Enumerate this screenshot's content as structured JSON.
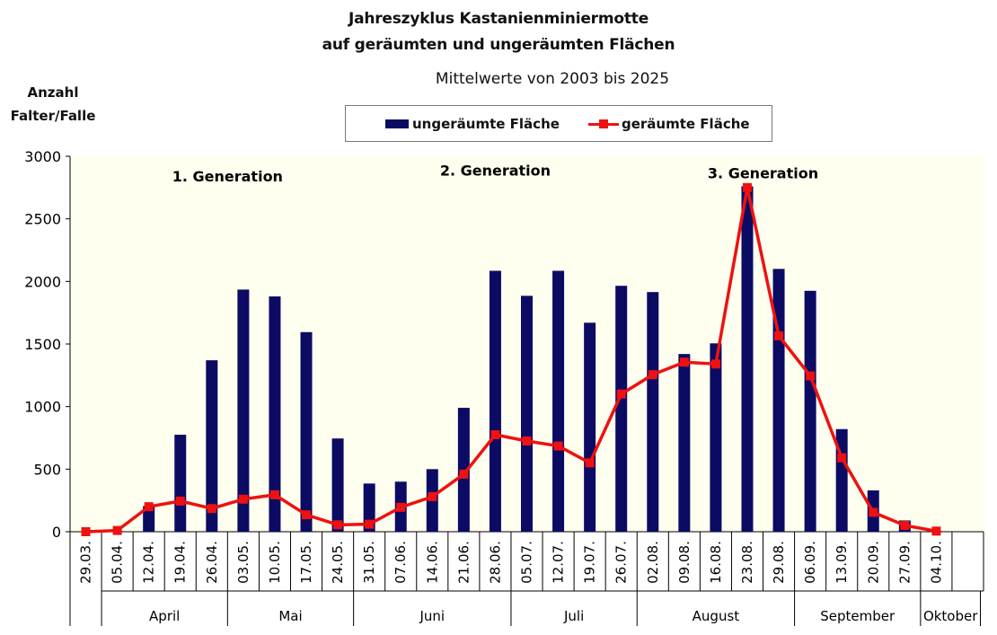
{
  "chart_data": {
    "type": "bar",
    "title_line1": "Jahreszyklus Kastanienminiermotte",
    "title_line2": "auf geräumten und ungeräumten Flächen",
    "subtitle": "Mittelwerte von 2003 bis 2025",
    "ylabel_line1": "Anzahl",
    "ylabel_line2": "Falter/Falle",
    "ylim": [
      0,
      3000
    ],
    "yticks": [
      0,
      500,
      1000,
      1500,
      2000,
      2500,
      3000
    ],
    "categories": [
      "29.03.",
      "05.04.",
      "12.04.",
      "19.04.",
      "26.04.",
      "03.05.",
      "10.05.",
      "17.05.",
      "24.05.",
      "31.05.",
      "07.06.",
      "14.06.",
      "21.06.",
      "28.06.",
      "05.07.",
      "12.07.",
      "19.07.",
      "26.07.",
      "02.08.",
      "09.08.",
      "16.08.",
      "23.08.",
      "29.08.",
      "06.09.",
      "13.09.",
      "20.09.",
      "27.09.",
      "04.10."
    ],
    "months": [
      {
        "label": "April",
        "start": 1,
        "end": 5
      },
      {
        "label": "Mai",
        "start": 5,
        "end": 9
      },
      {
        "label": "Juni",
        "start": 9,
        "end": 14
      },
      {
        "label": "Juli",
        "start": 14,
        "end": 18
      },
      {
        "label": "August",
        "start": 18,
        "end": 23
      },
      {
        "label": "September",
        "start": 23,
        "end": 27
      },
      {
        "label": "Oktober",
        "start": 27,
        "end": 28.9
      }
    ],
    "series": [
      {
        "name": "ungeräumte Fläche",
        "type": "bar",
        "color": "#0b0b64",
        "values": [
          0,
          5,
          205,
          775,
          1370,
          1935,
          1880,
          1595,
          745,
          385,
          400,
          500,
          990,
          2085,
          1885,
          2085,
          1670,
          1965,
          1915,
          1420,
          1505,
          2760,
          2100,
          1925,
          820,
          330,
          90,
          5
        ]
      },
      {
        "name": "geräumte Fläche",
        "type": "line",
        "color": "#ee1111",
        "values": [
          0,
          10,
          200,
          245,
          185,
          260,
          295,
          135,
          55,
          60,
          195,
          280,
          460,
          775,
          725,
          685,
          550,
          1100,
          1255,
          1355,
          1340,
          2750,
          1565,
          1245,
          590,
          155,
          50,
          5
        ]
      }
    ],
    "annotations": [
      {
        "text": "1. Generation",
        "x": 4.5,
        "y": 2800
      },
      {
        "text": "2. Generation",
        "x": 13,
        "y": 2845
      },
      {
        "text": "3. Generation",
        "x": 21.5,
        "y": 2825
      }
    ],
    "plot_background": "#fffff0",
    "grid": false,
    "legend_position": "top-center"
  }
}
